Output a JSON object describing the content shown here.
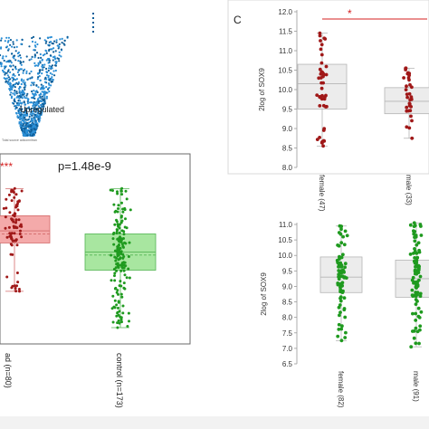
{
  "panel_label_c": "C",
  "volcano": {
    "legend_text": "Upregulated",
    "axis_caption": "Total source adiconnitran",
    "colors": {
      "points": "#2b8fd6",
      "dark": "#0f5f9a"
    }
  },
  "chart_data": [
    {
      "id": "left-box",
      "type": "box",
      "annotations": {
        "stars": "***",
        "pvalue": "p=1.48e-9"
      },
      "categories": [
        "ad (n=80)",
        "control (n=173)"
      ],
      "boxes": [
        {
          "q1": 0.62,
          "median": 0.7,
          "q3": 0.8,
          "mean": 0.68,
          "whisker_low": 0.3,
          "whisker_high": 0.98,
          "n": 80,
          "fill": "#f4aaaa",
          "stroke": "#d46a6a",
          "point": "#a01818"
        },
        {
          "q1": 0.44,
          "median": 0.56,
          "q3": 0.68,
          "mean": 0.54,
          "whisker_low": 0.06,
          "whisker_high": 0.98,
          "n": 173,
          "fill": "#a8e6a0",
          "stroke": "#55b555",
          "point": "#1f9a1f"
        }
      ],
      "ylim": [
        0,
        1
      ],
      "ylabel": "",
      "xlabel": "",
      "title": ""
    },
    {
      "id": "panel-c-top",
      "type": "box",
      "ylabel": "2log of SOX9",
      "yticks": [
        "12.0",
        "11.5",
        "11.0",
        "10.5",
        "10.0",
        "9.5",
        "9.0",
        "8.5",
        "8.0"
      ],
      "ylim": [
        8.0,
        12.0
      ],
      "categories": [
        "female (47)",
        "male (33)"
      ],
      "significance": "*",
      "boxes": [
        {
          "q1": 9.5,
          "median": 10.15,
          "q3": 10.65,
          "whisker_low": 8.55,
          "whisker_high": 11.45,
          "n": 47,
          "point": "#a01818",
          "fill": "#ececec",
          "stroke": "#b5b5b5"
        },
        {
          "q1": 9.38,
          "median": 9.7,
          "q3": 10.05,
          "whisker_low": 8.75,
          "whisker_high": 10.55,
          "n": 33,
          "point": "#a01818",
          "fill": "#ececec",
          "stroke": "#b5b5b5"
        }
      ]
    },
    {
      "id": "panel-c-bottom",
      "type": "box",
      "ylabel": "2log of SOX9",
      "yticks": [
        "11.0",
        "10.5",
        "10.0",
        "9.5",
        "9.0",
        "8.5",
        "8.0",
        "7.5",
        "7.0",
        "6.5"
      ],
      "ylim": [
        6.5,
        11.0
      ],
      "categories": [
        "female (82)",
        "male (91)"
      ],
      "boxes": [
        {
          "q1": 8.8,
          "median": 9.3,
          "q3": 9.95,
          "whisker_low": 7.25,
          "whisker_high": 10.95,
          "n": 82,
          "point": "#1f9a1f",
          "fill": "#ececec",
          "stroke": "#b5b5b5"
        },
        {
          "q1": 8.65,
          "median": 9.25,
          "q3": 9.85,
          "whisker_low": 7.05,
          "whisker_high": 11.05,
          "n": 91,
          "point": "#1f9a1f",
          "fill": "#ececec",
          "stroke": "#b5b5b5"
        }
      ]
    }
  ]
}
